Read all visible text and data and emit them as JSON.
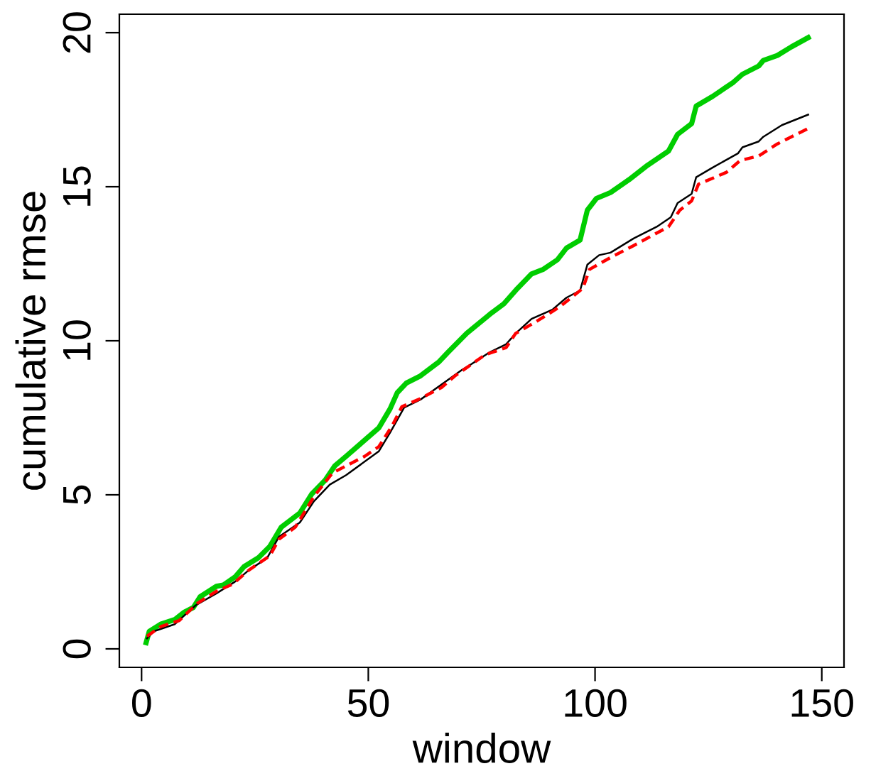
{
  "chart_data": {
    "type": "line",
    "xlabel": "window",
    "ylabel": "cumulative rmse",
    "xlim": [
      -4.9,
      154.9
    ],
    "ylim": [
      -0.6,
      20.6
    ],
    "xticks": [
      0,
      50,
      100,
      150
    ],
    "yticks": [
      0,
      5,
      10,
      15,
      20
    ],
    "grid": false,
    "legend": false,
    "series": [
      {
        "color": "#00cd00",
        "line_style": "solid",
        "x": [
          1,
          1.7,
          4.2,
          7.3,
          9.3,
          11.4,
          12.9,
          16.5,
          18,
          20.6,
          22.6,
          25.7,
          28.3,
          30.8,
          34.9,
          37.5,
          40.5,
          42.6,
          45.1,
          48.7,
          52.3,
          54.8,
          56.4,
          58.4,
          61.5,
          65.6,
          67.6,
          71.7,
          76.8,
          79.9,
          82.9,
          86,
          88.6,
          91.7,
          93.7,
          96.7,
          98.3,
          100.3,
          103.4,
          107.5,
          111.6,
          116.2,
          118.2,
          121.3,
          122.3,
          125.9,
          130.5,
          132.5,
          136.1,
          137.1,
          140.2,
          143.3,
          147
        ],
        "values": [
          0.2,
          0.57,
          0.8,
          0.95,
          1.18,
          1.34,
          1.69,
          2.03,
          2.07,
          2.33,
          2.67,
          2.95,
          3.33,
          3.95,
          4.41,
          5.02,
          5.48,
          5.94,
          6.25,
          6.71,
          7.17,
          7.79,
          8.32,
          8.63,
          8.86,
          9.32,
          9.63,
          10.24,
          10.86,
          11.2,
          11.7,
          12.17,
          12.32,
          12.63,
          13.01,
          13.27,
          14.24,
          14.62,
          14.81,
          15.23,
          15.7,
          16.16,
          16.7,
          17.05,
          17.62,
          17.93,
          18.39,
          18.65,
          18.92,
          19.1,
          19.26,
          19.54,
          19.84
        ]
      },
      {
        "color": "#000000",
        "line_style": "solid",
        "x": [
          1.2,
          2.7,
          7.3,
          11.9,
          16.5,
          20.6,
          23.7,
          27.7,
          30.3,
          34.9,
          38,
          41.5,
          45.1,
          52.3,
          54.8,
          57.9,
          61.5,
          66.6,
          70.7,
          72.7,
          76.8,
          80.4,
          82.5,
          86,
          90.6,
          93.7,
          96.7,
          98.3,
          100.9,
          103.4,
          108.5,
          113.6,
          116.7,
          118.2,
          121.3,
          122.3,
          125.9,
          131.5,
          132.5,
          136.1,
          137.1,
          141.2,
          147
        ],
        "values": [
          0.34,
          0.57,
          0.8,
          1.41,
          1.8,
          2.18,
          2.56,
          2.95,
          3.64,
          4.1,
          4.79,
          5.33,
          5.64,
          6.41,
          7.02,
          7.83,
          8.09,
          8.63,
          9.06,
          9.24,
          9.63,
          9.89,
          10.24,
          10.71,
          11.01,
          11.4,
          11.63,
          12.47,
          12.78,
          12.86,
          13.32,
          13.7,
          14.01,
          14.47,
          14.77,
          15.31,
          15.62,
          16.08,
          16.28,
          16.47,
          16.62,
          17.0,
          17.34
        ]
      },
      {
        "color": "#ff0000",
        "line_style": "dashed",
        "x": [
          1.2,
          4.2,
          8.3,
          12.4,
          16.5,
          20.1,
          23.7,
          28.3,
          30.3,
          33.9,
          38,
          42.1,
          49.2,
          52.3,
          55.3,
          57.4,
          61,
          66.1,
          69.1,
          75.8,
          80.4,
          82.5,
          87.1,
          92.1,
          97.3,
          98.8,
          103.4,
          108.5,
          116.2,
          118.7,
          121.3,
          122.8,
          129,
          132,
          136.1,
          140.2,
          147
        ],
        "values": [
          0.41,
          0.72,
          0.92,
          1.49,
          1.87,
          2.1,
          2.56,
          3.02,
          3.56,
          3.95,
          4.94,
          5.71,
          6.25,
          6.56,
          7.25,
          7.86,
          8.09,
          8.48,
          8.86,
          9.55,
          9.78,
          10.24,
          10.63,
          11.09,
          11.7,
          12.32,
          12.7,
          13.09,
          13.7,
          14.24,
          14.54,
          15.08,
          15.47,
          15.85,
          16.0,
          16.39,
          16.89
        ]
      }
    ]
  }
}
